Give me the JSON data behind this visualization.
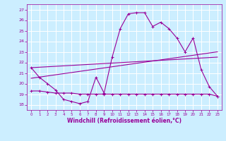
{
  "xlabel": "Windchill (Refroidissement éolien,°C)",
  "bg_color": "#cceeff",
  "grid_color": "#ffffff",
  "line_color": "#990099",
  "ylim": [
    17.5,
    27.5
  ],
  "xlim": [
    -0.5,
    23.5
  ],
  "yticks": [
    18,
    19,
    20,
    21,
    22,
    23,
    24,
    25,
    26,
    27
  ],
  "xticks": [
    0,
    1,
    2,
    3,
    4,
    5,
    6,
    7,
    8,
    9,
    10,
    11,
    12,
    13,
    14,
    15,
    16,
    17,
    18,
    19,
    20,
    21,
    22,
    23
  ],
  "series1_x": [
    0,
    1,
    2,
    3,
    4,
    5,
    6,
    7,
    8,
    9,
    10,
    11,
    12,
    13,
    14,
    15,
    16,
    17,
    18,
    19,
    20,
    21,
    22,
    23
  ],
  "series1_y": [
    21.5,
    20.6,
    20.0,
    19.4,
    18.5,
    18.3,
    18.1,
    18.3,
    20.6,
    19.1,
    22.5,
    25.2,
    26.6,
    26.7,
    26.7,
    25.4,
    25.8,
    25.2,
    24.3,
    23.0,
    24.3,
    21.3,
    19.7,
    18.8
  ],
  "series2_x": [
    0,
    1,
    2,
    3,
    4,
    5,
    6,
    7,
    8,
    9,
    10,
    11,
    12,
    13,
    14,
    15,
    16,
    17,
    18,
    19,
    20,
    21,
    22,
    23
  ],
  "series2_y": [
    19.3,
    19.3,
    19.2,
    19.1,
    19.1,
    19.1,
    19.0,
    19.0,
    19.0,
    19.0,
    19.0,
    19.0,
    19.0,
    19.0,
    19.0,
    19.0,
    19.0,
    19.0,
    19.0,
    19.0,
    19.0,
    19.0,
    19.0,
    18.8
  ],
  "series3_x": [
    0,
    23
  ],
  "series3_y": [
    20.5,
    23.0
  ],
  "series4_x": [
    0,
    23
  ],
  "series4_y": [
    21.5,
    22.5
  ]
}
